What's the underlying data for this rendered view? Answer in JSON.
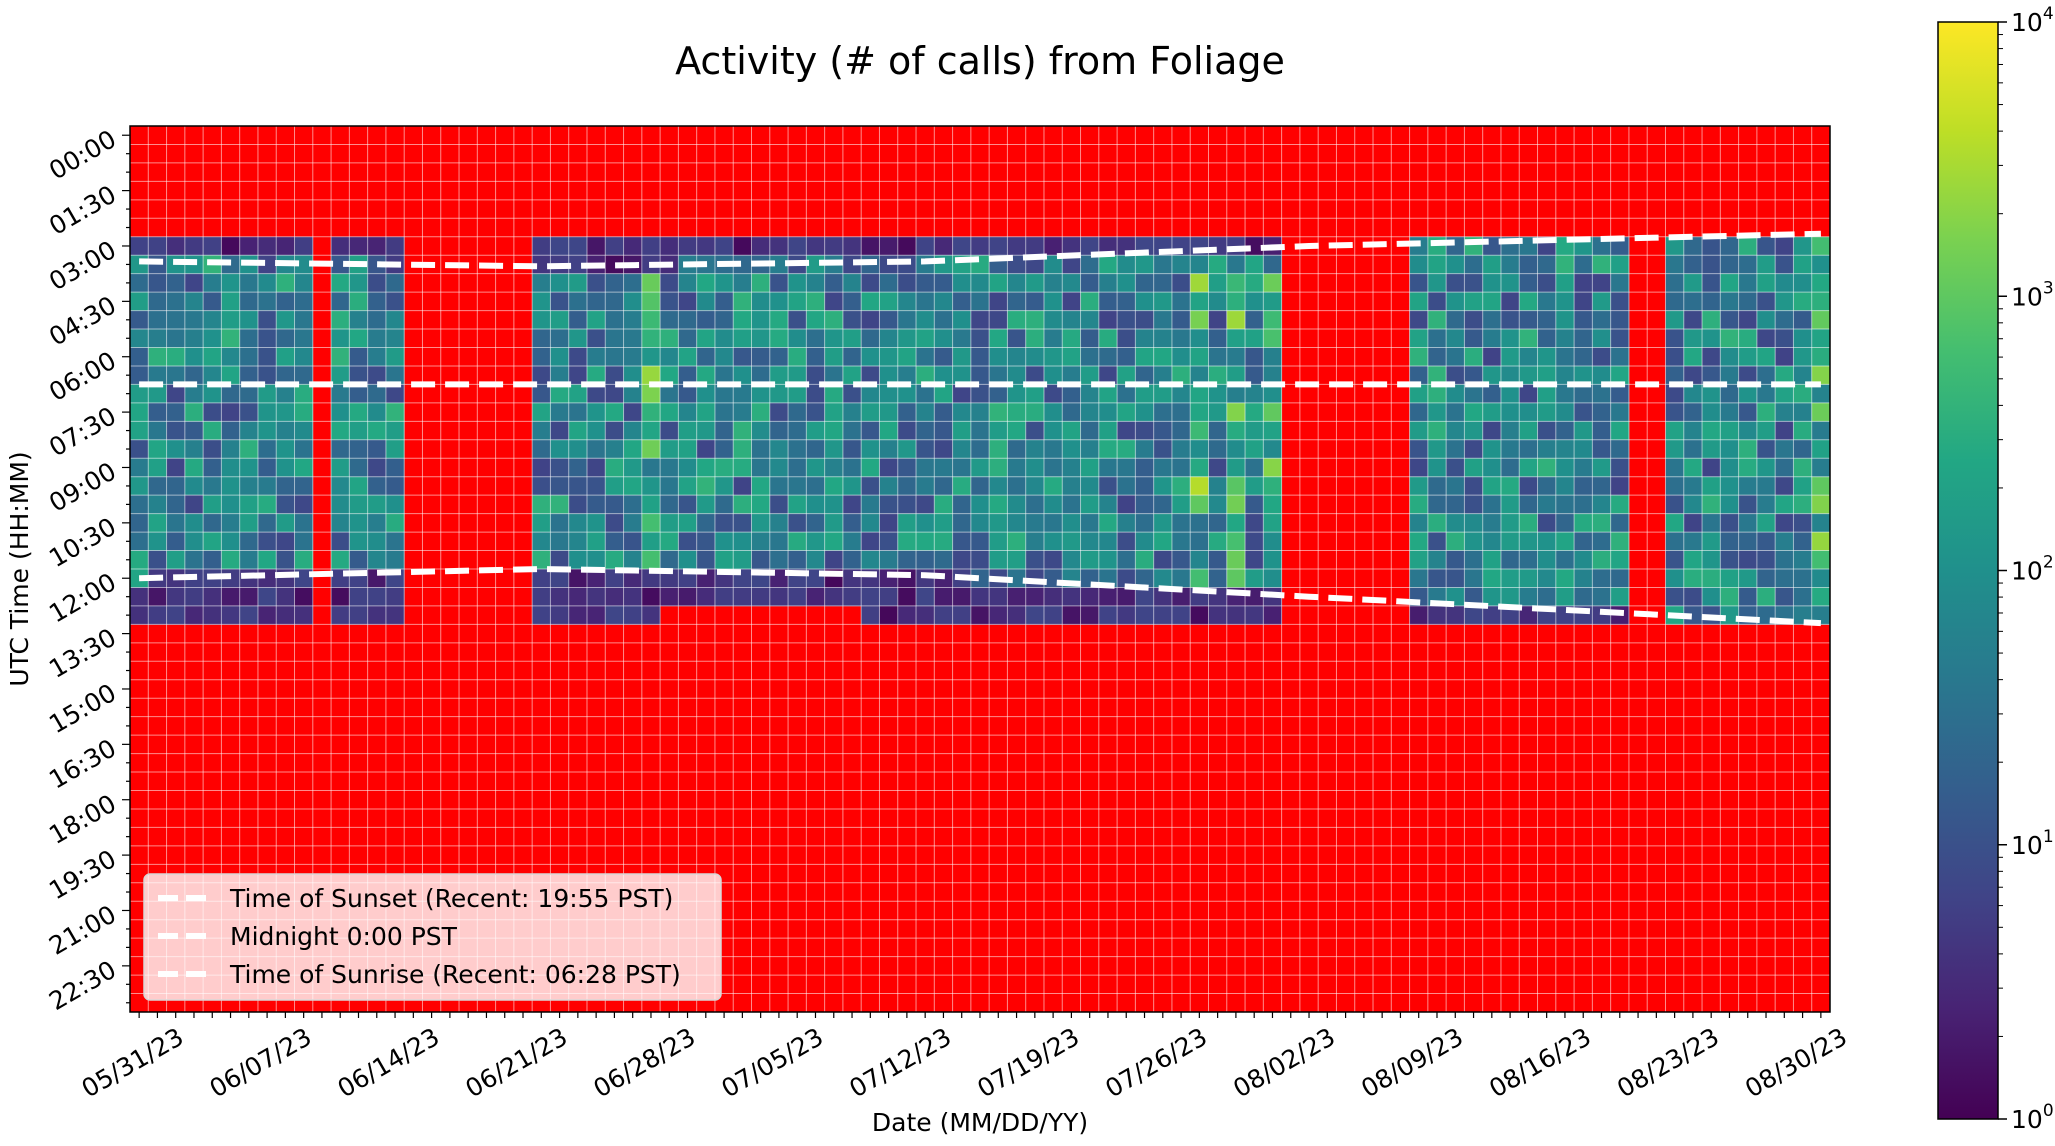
{
  "chart_data": {
    "type": "heatmap",
    "title": "Activity (# of calls) from Foliage",
    "xlabel": "Date (MM/DD/YY)",
    "ylabel": "UTC Time (HH:MM)",
    "x_start": "05/30/23",
    "x_end": "08/30/23",
    "x_tick_labels": [
      "05/31/23",
      "06/07/23",
      "06/14/23",
      "06/21/23",
      "06/28/23",
      "07/05/23",
      "07/12/23",
      "07/19/23",
      "07/26/23",
      "08/02/23",
      "08/09/23",
      "08/16/23",
      "08/23/23",
      "08/30/23"
    ],
    "y_tick_labels": [
      "00:00",
      "01:30",
      "03:00",
      "04:30",
      "06:00",
      "07:30",
      "09:00",
      "10:30",
      "12:00",
      "13:30",
      "15:00",
      "16:30",
      "18:00",
      "19:30",
      "21:00",
      "22:30"
    ],
    "time_bin_minutes": 30,
    "colorbar": {
      "scale": "log",
      "min": 1,
      "max": 10000,
      "colormap": "viridis",
      "tick_labels": [
        "10",
        "10",
        "10",
        "10",
        "10"
      ],
      "tick_exponents": [
        "0",
        "1",
        "2",
        "3",
        "4"
      ]
    },
    "no_data_color": "#ff0000",
    "grid": true,
    "legend": {
      "placement": "lower-left",
      "entries": [
        "Time of Sunset (Recent: 19:55 PST)",
        "Midnight 0:00 PST",
        "Time of Sunrise (Recent: 06:28 PST)"
      ]
    },
    "reference_lines": [
      {
        "name": "Time of Sunset (Recent: 19:55 PST)",
        "points": [
          [
            "05/30/23",
            "03:40"
          ],
          [
            "06/21/23",
            "03:48"
          ],
          [
            "07/12/23",
            "03:40"
          ],
          [
            "08/02/23",
            "03:15"
          ],
          [
            "08/30/23",
            "02:55"
          ]
        ]
      },
      {
        "name": "Midnight 0:00 PST",
        "points": [
          [
            "05/30/23",
            "07:00"
          ],
          [
            "08/30/23",
            "07:00"
          ]
        ]
      },
      {
        "name": "Time of Sunrise (Recent: 06:28 PST)",
        "points": [
          [
            "05/30/23",
            "12:15"
          ],
          [
            "06/21/23",
            "12:00"
          ],
          [
            "07/12/23",
            "12:10"
          ],
          [
            "08/02/23",
            "12:45"
          ],
          [
            "08/30/23",
            "13:28"
          ]
        ]
      }
    ],
    "activity": {
      "recorded_periods": [
        [
          "05/30/23",
          "06/08/23",
          "03:00",
          "13:30"
        ],
        [
          "06/10/23",
          "06/13/23",
          "03:00",
          "13:30"
        ],
        [
          "06/21/23",
          "06/27/23",
          "03:00",
          "13:30"
        ],
        [
          "06/27/23",
          "07/09/23",
          "03:00",
          "13:00"
        ],
        [
          "07/09/23",
          "07/24/23",
          "03:00",
          "13:30"
        ],
        [
          "07/25/23",
          "07/31/23",
          "03:00",
          "13:30"
        ],
        [
          "08/08/23",
          "08/19/23",
          "03:00",
          "13:30"
        ],
        [
          "08/22/23",
          "08/30/23",
          "03:00",
          "13:30"
        ]
      ],
      "typical_calls_night": 50,
      "typical_calls_edge": 2,
      "peak_calls": 5000
    }
  }
}
